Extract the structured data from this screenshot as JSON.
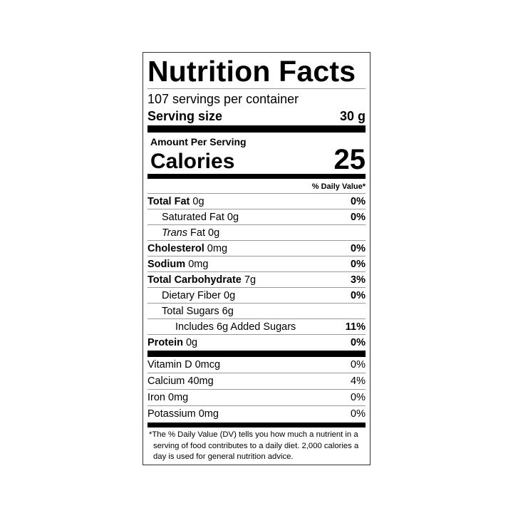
{
  "title": "Nutrition Facts",
  "servings_per_container": "107 servings per container",
  "serving_size": {
    "label": "Serving size",
    "value": "30 g"
  },
  "amount_per_serving": "Amount Per Serving",
  "calories": {
    "label": "Calories",
    "value": "25"
  },
  "daily_value_header": "% Daily Value*",
  "nutrients": [
    {
      "name": "Total Fat",
      "amount": "0g",
      "dv": "0%"
    },
    {
      "name": "Saturated Fat",
      "amount": "0g",
      "dv": "0%"
    },
    {
      "name_italic": "Trans",
      "name": "Fat",
      "amount": "0g",
      "dv": ""
    },
    {
      "name": "Cholesterol",
      "amount": "0mg",
      "dv": "0%"
    },
    {
      "name": "Sodium",
      "amount": "0mg",
      "dv": "0%"
    },
    {
      "name": "Total Carbohydrate",
      "amount": "7g",
      "dv": "3%"
    },
    {
      "name": "Dietary Fiber",
      "amount": "0g",
      "dv": "0%"
    },
    {
      "name": "Total Sugars",
      "amount": "6g",
      "dv": ""
    },
    {
      "name": "Includes 6g Added Sugars",
      "dv": "11%"
    },
    {
      "name": "Protein",
      "amount": "0g",
      "dv": "0%"
    }
  ],
  "vitamins": [
    {
      "label": "Vitamin D 0mcg",
      "dv": "0%"
    },
    {
      "label": "Calcium 40mg",
      "dv": "4%"
    },
    {
      "label": "Iron 0mg",
      "dv": "0%"
    },
    {
      "label": "Potassium 0mg",
      "dv": "0%"
    }
  ],
  "footnote": "*The % Daily Value (DV) tells you how much a nutrient in a serving of food contributes to a daily diet. 2,000 calories a day is used for general nutrition advice."
}
